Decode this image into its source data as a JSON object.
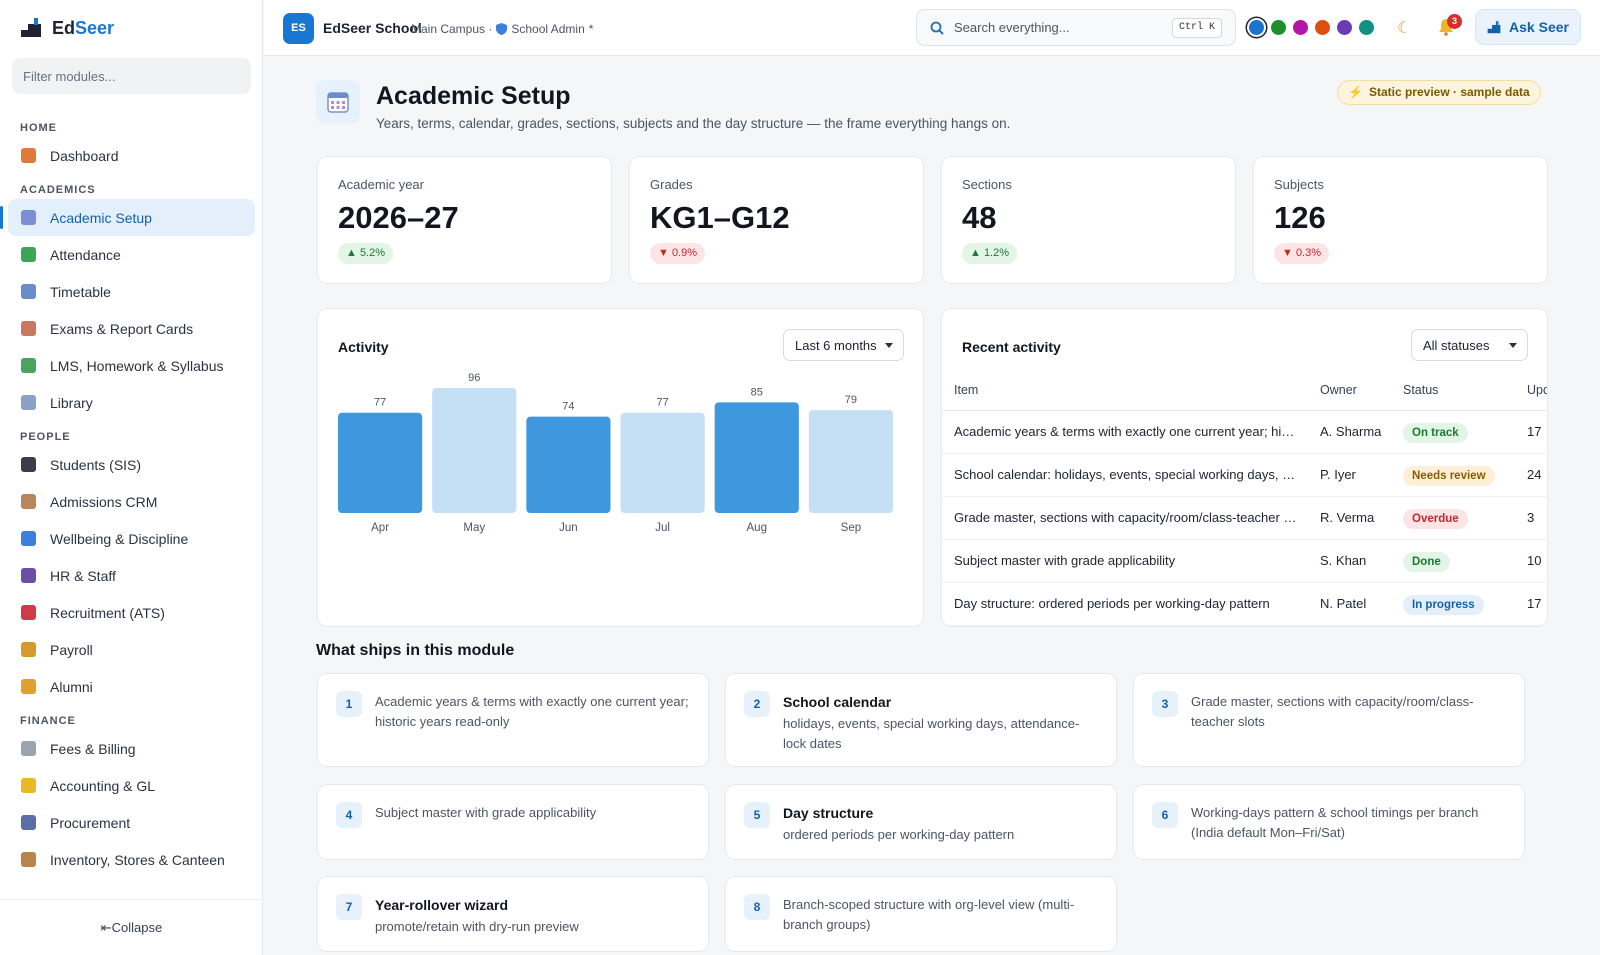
{
  "app": {
    "name_part1": "Ed",
    "name_part2": "Seer",
    "filter_placeholder": "Filter modules...",
    "collapse_label": "⇤Collapse"
  },
  "sidebar": {
    "sections": [
      {
        "title": "HOME",
        "items": [
          {
            "label": "Dashboard",
            "icon": "house-icon",
            "color": "#e07a3a"
          }
        ]
      },
      {
        "title": "ACADEMICS",
        "items": [
          {
            "label": "Academic Setup",
            "icon": "calendar-icon",
            "color": "#7b8fd6",
            "active": true
          },
          {
            "label": "Attendance",
            "icon": "check-icon",
            "color": "#3aa655"
          },
          {
            "label": "Timetable",
            "icon": "calendar-icon",
            "color": "#6a8cc9"
          },
          {
            "label": "Exams & Report Cards",
            "icon": "memo-icon",
            "color": "#c9785d"
          },
          {
            "label": "LMS, Homework & Syllabus",
            "icon": "books-icon",
            "color": "#4aa35e"
          },
          {
            "label": "Library",
            "icon": "book-icon",
            "color": "#8aa0c4"
          }
        ]
      },
      {
        "title": "PEOPLE",
        "items": [
          {
            "label": "Students (SIS)",
            "icon": "graduation-cap-icon",
            "color": "#3b3b4a"
          },
          {
            "label": "Admissions CRM",
            "icon": "clipboard-icon",
            "color": "#b9855a"
          },
          {
            "label": "Wellbeing & Discipline",
            "icon": "heart-icon",
            "color": "#3d7fe0"
          },
          {
            "label": "HR & Staff",
            "icon": "people-icon",
            "color": "#6b4fa3"
          },
          {
            "label": "Recruitment (ATS)",
            "icon": "magnet-icon",
            "color": "#d23a4a"
          },
          {
            "label": "Payroll",
            "icon": "money-bag-icon",
            "color": "#d49a2a"
          },
          {
            "label": "Alumni",
            "icon": "medal-icon",
            "color": "#e0a030"
          }
        ]
      },
      {
        "title": "FINANCE",
        "items": [
          {
            "label": "Fees & Billing",
            "icon": "receipt-icon",
            "color": "#9aa3ae"
          },
          {
            "label": "Accounting & GL",
            "icon": "ledger-icon",
            "color": "#e8b826"
          },
          {
            "label": "Procurement",
            "icon": "cart-icon",
            "color": "#5a6fa8"
          },
          {
            "label": "Inventory, Stores & Canteen",
            "icon": "package-icon",
            "color": "#b8844a"
          }
        ]
      }
    ]
  },
  "topbar": {
    "avatar": "ES",
    "school": "EdSeer School",
    "campus": "Main Campus ·",
    "role": "School Admin",
    "role_marker": "*",
    "search_placeholder": "Search everything...",
    "shortcut": "Ctrl K",
    "swatches": [
      "#1b75d0",
      "#1f8f2e",
      "#b515a8",
      "#dc4f0e",
      "#6a3bb5",
      "#0f9080"
    ],
    "notif_count": "3",
    "ask_label": "Ask Seer"
  },
  "page": {
    "title": "Academic Setup",
    "subtitle": "Years, terms, calendar, grades, sections, subjects and the day structure — the frame everything hangs on.",
    "preview_badge": "Static preview · sample data"
  },
  "kpis": [
    {
      "label": "Academic year",
      "value": "2026–27",
      "delta": "▲ 5.2%",
      "dir": "up"
    },
    {
      "label": "Grades",
      "value": "KG1–G12",
      "delta": "▼ 0.9%",
      "dir": "down"
    },
    {
      "label": "Sections",
      "value": "48",
      "delta": "▲ 1.2%",
      "dir": "up"
    },
    {
      "label": "Subjects",
      "value": "126",
      "delta": "▼ 0.3%",
      "dir": "down"
    }
  ],
  "activity": {
    "title": "Activity",
    "range": "Last 6 months"
  },
  "chart_data": {
    "type": "bar",
    "categories": [
      "Apr",
      "May",
      "Jun",
      "Jul",
      "Aug",
      "Sep"
    ],
    "values": [
      77,
      96,
      74,
      77,
      85,
      79
    ],
    "colors": [
      "#3f97de",
      "#c5dff5",
      "#3f97de",
      "#c5dff5",
      "#3f97de",
      "#c5dff5"
    ],
    "ylim": [
      0,
      96
    ],
    "grid": false,
    "legend": "none"
  },
  "recent": {
    "title": "Recent activity",
    "filter": "All statuses",
    "columns": [
      "Item",
      "Owner",
      "Status",
      "Upd"
    ],
    "rows": [
      {
        "item": "Academic years & terms with exactly one current year; historic years read-only",
        "owner": "A. Sharma",
        "status": "On track",
        "cls": "st-track",
        "upd": "17"
      },
      {
        "item": "School calendar: holidays, events, special working days, attendance-lock dates",
        "owner": "P. Iyer",
        "status": "Needs review",
        "cls": "st-review",
        "upd": "24"
      },
      {
        "item": "Grade master, sections with capacity/room/class-teacher slots",
        "owner": "R. Verma",
        "status": "Overdue",
        "cls": "st-over",
        "upd": "3"
      },
      {
        "item": "Subject master with grade applicability",
        "owner": "S. Khan",
        "status": "Done",
        "cls": "st-done",
        "upd": "10"
      },
      {
        "item": "Day structure: ordered periods per working-day pattern",
        "owner": "N. Patel",
        "status": "In progress",
        "cls": "st-prog",
        "upd": "17"
      }
    ]
  },
  "ships": {
    "title": "What ships in this module",
    "features": [
      {
        "n": "1",
        "head": "",
        "text": "Academic years & terms with exactly one current year; historic years read-only"
      },
      {
        "n": "2",
        "head": "School calendar",
        "text": "holidays, events, special working days, attendance-lock dates"
      },
      {
        "n": "3",
        "head": "",
        "text": "Grade master, sections with capacity/room/class-teacher slots"
      },
      {
        "n": "4",
        "head": "",
        "text": "Subject master with grade applicability"
      },
      {
        "n": "5",
        "head": "Day structure",
        "text": "ordered periods per working-day pattern"
      },
      {
        "n": "6",
        "head": "",
        "text": "Working-days pattern & school timings per branch (India default Mon–Fri/Sat)"
      },
      {
        "n": "7",
        "head": "Year-rollover wizard",
        "text": "promote/retain with dry-run preview"
      },
      {
        "n": "8",
        "head": "",
        "text": "Branch-scoped structure with org-level view (multi-branch groups)"
      }
    ]
  }
}
